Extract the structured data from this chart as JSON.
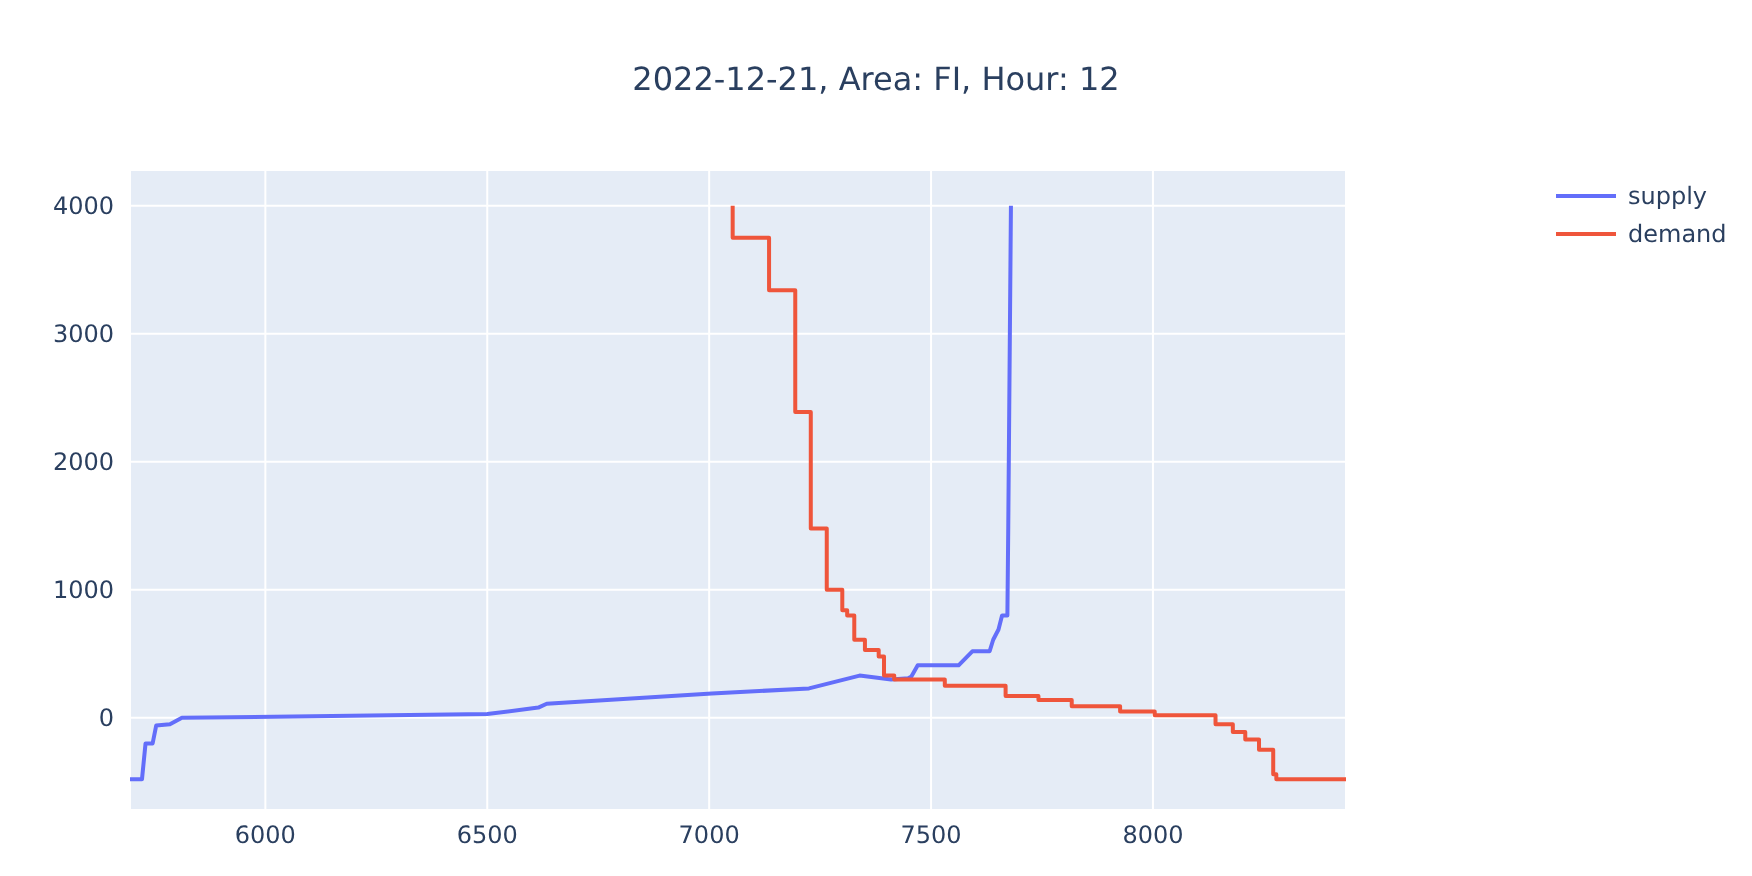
{
  "chart_data": {
    "type": "line",
    "title": "2022-12-21, Area: FI, Hour: 12",
    "xlim": [
      5695,
      8435
    ],
    "xticks": [
      6000,
      6500,
      7000,
      7500,
      8000
    ],
    "ylim": [
      -720,
      4280
    ],
    "yticks": [
      0,
      1000,
      2000,
      3000,
      4000
    ],
    "grid": true,
    "legend": "top right",
    "marker": "none",
    "line_style": "solid",
    "series": [
      {
        "name": "supply",
        "color": "#636efa",
        "x": [
          5695,
          5722,
          5730,
          5746,
          5754,
          5785,
          5812,
          6500,
          6615,
          6634,
          7006,
          7225,
          7339,
          7410,
          7449,
          7455,
          7470,
          7562,
          7593,
          7632,
          7640,
          7652,
          7660,
          7672,
          7674,
          7680
        ],
        "values": [
          -480,
          -480,
          -200,
          -200,
          -60,
          -50,
          0,
          30,
          80,
          110,
          190,
          230,
          330,
          300,
          310,
          320,
          410,
          410,
          520,
          520,
          610,
          690,
          800,
          800,
          1500,
          4000
        ]
      },
      {
        "name": "demand",
        "color": "#ef553b",
        "x": [
          7053,
          7053,
          7135,
          7135,
          7194,
          7194,
          7229,
          7229,
          7265,
          7265,
          7300,
          7300,
          7311,
          7311,
          7327,
          7327,
          7351,
          7351,
          7382,
          7382,
          7394,
          7394,
          7417,
          7417,
          7531,
          7531,
          7668,
          7668,
          7742,
          7742,
          7817,
          7817,
          7926,
          7926,
          8004,
          8004,
          8141,
          8141,
          8180,
          8180,
          8208,
          8208,
          8239,
          8239,
          8271,
          8271,
          8278,
          8278,
          8435
        ],
        "values": [
          4000,
          3750,
          3750,
          3340,
          3340,
          2390,
          2390,
          1480,
          1480,
          1000,
          1000,
          840,
          840,
          800,
          800,
          610,
          610,
          530,
          530,
          480,
          480,
          330,
          330,
          300,
          300,
          250,
          250,
          170,
          170,
          140,
          140,
          90,
          90,
          50,
          50,
          20,
          20,
          -50,
          -50,
          -110,
          -110,
          -170,
          -170,
          -250,
          -250,
          -440,
          -440,
          -480,
          -480
        ]
      }
    ]
  }
}
